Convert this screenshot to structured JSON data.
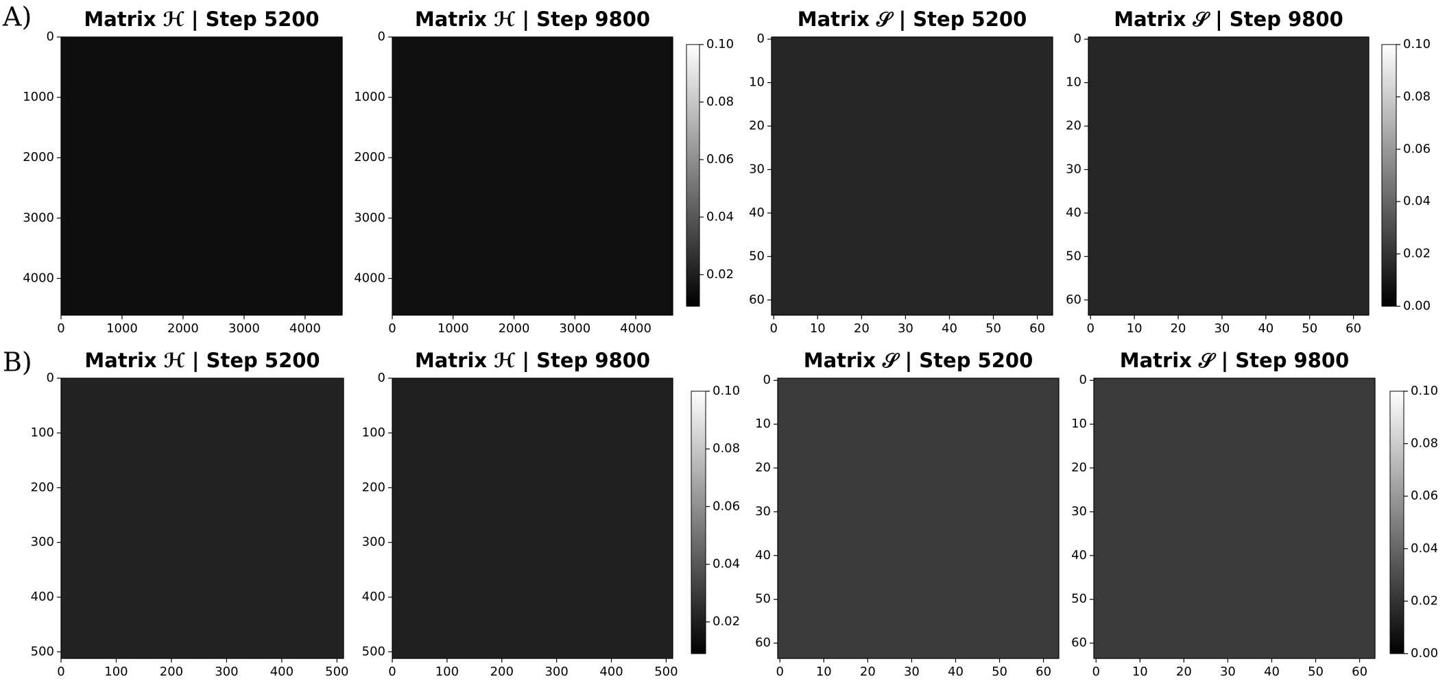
{
  "panel_labels": [
    "A)",
    "B)"
  ],
  "chart_data": [
    {
      "type": "heatmap",
      "title": "Matrix ℋ | Step 5200",
      "color": "#0e0e0e",
      "xlim": [
        0,
        4608
      ],
      "ylim": [
        0,
        4608
      ],
      "y_inverted": true,
      "xticks": [
        0,
        1000,
        2000,
        3000,
        4000
      ],
      "yticks": [
        0,
        1000,
        2000,
        3000,
        4000
      ]
    },
    {
      "type": "heatmap",
      "title": "Matrix ℋ | Step 9800",
      "color": "#0f0f0f",
      "xlim": [
        0,
        4608
      ],
      "ylim": [
        0,
        4608
      ],
      "y_inverted": true,
      "xticks": [
        0,
        1000,
        2000,
        3000,
        4000
      ],
      "yticks": [
        0,
        1000,
        2000,
        3000,
        4000
      ],
      "colorbar": {
        "lim": [
          0.009,
          0.1
        ],
        "colors": [
          "#000000",
          "#ffffff"
        ],
        "ticks": [
          0.02,
          0.04,
          0.06,
          0.08,
          {
            "value": 0.1,
            "label": "0.10"
          }
        ]
      }
    },
    {
      "type": "heatmap",
      "title": "Matrix 𝒮 | Step 5200",
      "color": "#262626",
      "xlim": [
        -0.5,
        63.5
      ],
      "ylim": [
        -0.5,
        63.5
      ],
      "y_inverted": true,
      "xticks": [
        0,
        10,
        20,
        30,
        40,
        50,
        60
      ],
      "yticks": [
        0,
        10,
        20,
        30,
        40,
        50,
        60
      ]
    },
    {
      "type": "heatmap",
      "title": "Matrix 𝒮 | Step 9800",
      "color": "#262626",
      "xlim": [
        -0.5,
        63.5
      ],
      "ylim": [
        -0.5,
        63.5
      ],
      "y_inverted": true,
      "xticks": [
        0,
        10,
        20,
        30,
        40,
        50,
        60
      ],
      "yticks": [
        0,
        10,
        20,
        30,
        40,
        50,
        60
      ],
      "colorbar": {
        "lim": [
          0,
          0.1
        ],
        "colors": [
          "#000000",
          "#ffffff"
        ],
        "ticks": [
          {
            "value": 0,
            "label": "0.00"
          },
          0.02,
          0.04,
          0.06,
          0.08,
          {
            "value": 0.1,
            "label": "0.10"
          }
        ]
      }
    },
    {
      "type": "heatmap",
      "title": "Matrix ℋ | Step 5200",
      "color": "#232323",
      "xlim": [
        0,
        512
      ],
      "ylim": [
        0,
        512
      ],
      "y_inverted": true,
      "xticks": [
        0,
        100,
        200,
        300,
        400,
        500
      ],
      "yticks": [
        0,
        100,
        200,
        300,
        400,
        500
      ]
    },
    {
      "type": "heatmap",
      "title": "Matrix ℋ | Step 9800",
      "color": "#202020",
      "xlim": [
        0,
        512
      ],
      "ylim": [
        0,
        512
      ],
      "y_inverted": true,
      "xticks": [
        0,
        100,
        200,
        300,
        400,
        500
      ],
      "yticks": [
        0,
        100,
        200,
        300,
        400,
        500
      ],
      "colorbar": {
        "lim": [
          0.009,
          0.1
        ],
        "colors": [
          "#000000",
          "#ffffff"
        ],
        "ticks": [
          0.02,
          0.04,
          0.06,
          0.08,
          {
            "value": 0.1,
            "label": "0.10"
          }
        ]
      }
    },
    {
      "type": "heatmap",
      "title": "Matrix 𝒮 | Step 5200",
      "color": "#3a3a3a",
      "xlim": [
        -0.5,
        63.5
      ],
      "ylim": [
        -0.5,
        63.5
      ],
      "y_inverted": true,
      "xticks": [
        0,
        10,
        20,
        30,
        40,
        50,
        60
      ],
      "yticks": [
        0,
        10,
        20,
        30,
        40,
        50,
        60
      ]
    },
    {
      "type": "heatmap",
      "title": "Matrix 𝒮 | Step 9800",
      "color": "#3a3a3a",
      "xlim": [
        -0.5,
        63.5
      ],
      "ylim": [
        -0.5,
        63.5
      ],
      "y_inverted": true,
      "xticks": [
        0,
        10,
        20,
        30,
        40,
        50,
        60
      ],
      "yticks": [
        0,
        10,
        20,
        30,
        40,
        50,
        60
      ],
      "colorbar": {
        "lim": [
          0,
          0.1
        ],
        "colors": [
          "#000000",
          "#ffffff"
        ],
        "ticks": [
          {
            "value": 0,
            "label": "0.00"
          },
          0.02,
          0.04,
          0.06,
          0.08,
          {
            "value": 0.1,
            "label": "0.10"
          }
        ]
      }
    }
  ]
}
